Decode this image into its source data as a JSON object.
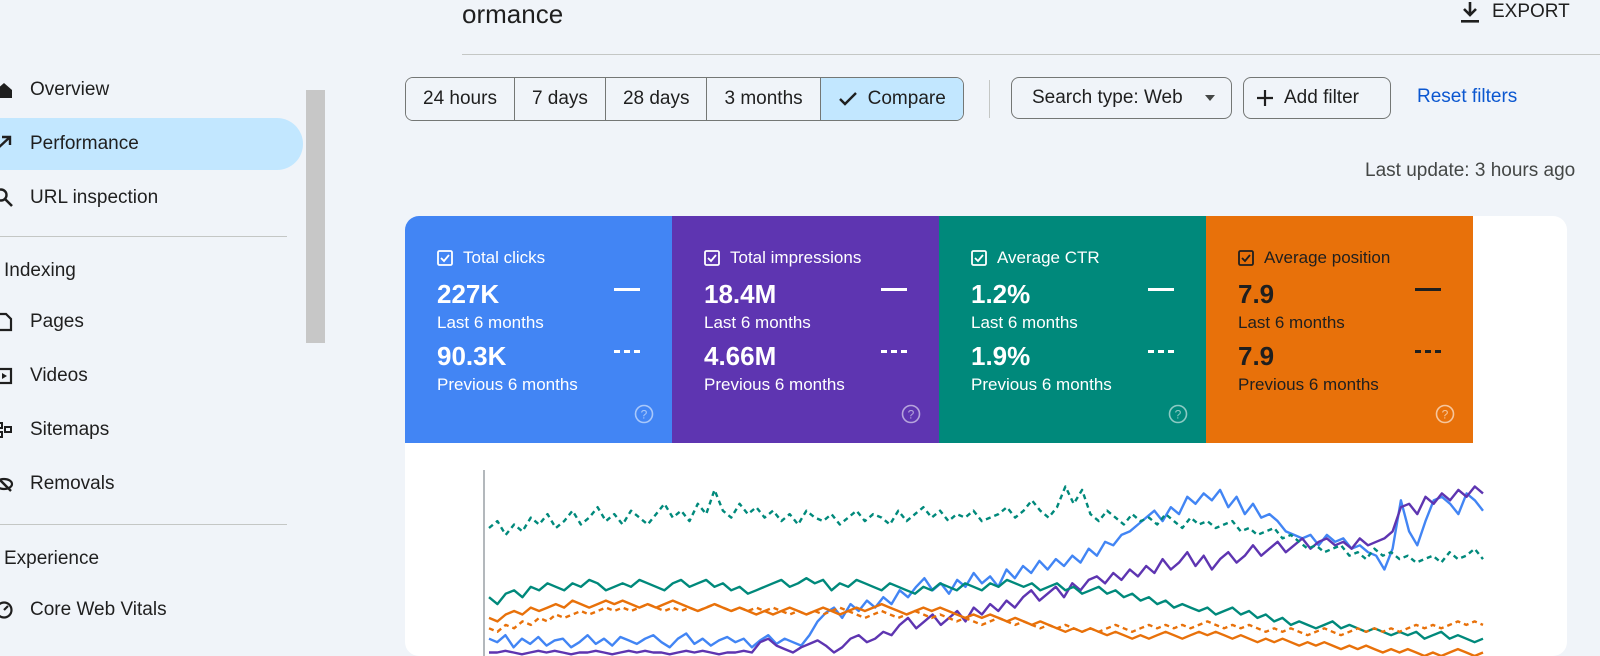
{
  "header": {
    "title": "ormance",
    "export_label": "EXPORT"
  },
  "sidebar": {
    "items": [
      {
        "label": "Overview",
        "icon": "home-icon"
      },
      {
        "label": "Performance",
        "icon": "trending-up-icon",
        "active": true
      },
      {
        "label": "URL inspection",
        "icon": "search-icon"
      }
    ],
    "sections": [
      {
        "title": "Indexing",
        "items": [
          {
            "label": "Pages",
            "icon": "pages-icon"
          },
          {
            "label": "Videos",
            "icon": "videos-icon"
          },
          {
            "label": "Sitemaps",
            "icon": "sitemaps-icon"
          },
          {
            "label": "Removals",
            "icon": "removals-icon"
          }
        ]
      },
      {
        "title": "Experience",
        "items": [
          {
            "label": "Core Web Vitals",
            "icon": "core-web-vitals-icon"
          }
        ]
      }
    ]
  },
  "toolbar": {
    "date_ranges": [
      "24 hours",
      "7 days",
      "28 days",
      "3 months"
    ],
    "compare_label": "Compare",
    "search_type_label": "Search type: Web",
    "add_filter_label": "Add filter",
    "reset_label": "Reset filters",
    "last_update": "Last update: 3 hours ago"
  },
  "metrics": [
    {
      "name": "Total clicks",
      "current": "227K",
      "current_period": "Last 6 months",
      "previous": "90.3K",
      "previous_period": "Previous 6 months",
      "color": "#4285f4"
    },
    {
      "name": "Total impressions",
      "current": "18.4M",
      "current_period": "Last 6 months",
      "previous": "4.66M",
      "previous_period": "Previous 6 months",
      "color": "#5e35b1"
    },
    {
      "name": "Average CTR",
      "current": "1.2%",
      "current_period": "Last 6 months",
      "previous": "1.9%",
      "previous_period": "Previous 6 months",
      "color": "#00897b"
    },
    {
      "name": "Average position",
      "current": "7.9",
      "current_period": "Last 6 months",
      "previous": "7.9",
      "previous_period": "Previous 6 months",
      "color": "#e8710a"
    }
  ],
  "colors": {
    "accent": "#c2e7ff",
    "link": "#0b57d0",
    "background": "#f0f4f9"
  },
  "chart_data": {
    "type": "line",
    "grid": false,
    "series": [
      {
        "name": "Total clicks",
        "line": "solid",
        "color": "#4285f4",
        "values": [
          0.9,
          0.92,
          0.88,
          0.95,
          0.9,
          0.93,
          0.89,
          0.94,
          0.91,
          0.9,
          0.95,
          0.92,
          0.88,
          0.93,
          0.9,
          0.94,
          0.89,
          0.91,
          0.93,
          0.9,
          0.88,
          0.92,
          0.95,
          0.9,
          0.87,
          0.93,
          0.9,
          0.94,
          0.91,
          0.89,
          0.92,
          0.9,
          0.95,
          0.91,
          0.88,
          0.93,
          0.9,
          0.92,
          0.94,
          0.88,
          0.8,
          0.75,
          0.72,
          0.78,
          0.7,
          0.74,
          0.68,
          0.72,
          0.66,
          0.7,
          0.62,
          0.66,
          0.6,
          0.55,
          0.62,
          0.58,
          0.64,
          0.56,
          0.6,
          0.52,
          0.58,
          0.54,
          0.6,
          0.5,
          0.55,
          0.48,
          0.52,
          0.45,
          0.5,
          0.44,
          0.48,
          0.42,
          0.46,
          0.38,
          0.42,
          0.34,
          0.36,
          0.3,
          0.28,
          0.24,
          0.2,
          0.16,
          0.22,
          0.14,
          0.18,
          0.08,
          0.12,
          0.06,
          0.1,
          0.04,
          0.14,
          0.08,
          0.18,
          0.12,
          0.2,
          0.18,
          0.22,
          0.28,
          0.3,
          0.32,
          0.3,
          0.36,
          0.3,
          0.34,
          0.32,
          0.38,
          0.36,
          0.4,
          0.42,
          0.5,
          0.38,
          0.1,
          0.28,
          0.36,
          0.22,
          0.1,
          0.08,
          0.12,
          0.18,
          0.06,
          0.1,
          0.16
        ]
      },
      {
        "name": "Total impressions",
        "line": "solid",
        "color": "#5e35b1",
        "values": [
          0.98,
          0.98,
          0.97,
          0.98,
          0.99,
          0.98,
          0.97,
          0.98,
          0.97,
          0.98,
          0.99,
          0.98,
          0.98,
          0.97,
          0.98,
          0.99,
          0.98,
          0.97,
          0.98,
          0.97,
          0.98,
          0.98,
          0.99,
          0.98,
          0.97,
          0.98,
          0.97,
          0.98,
          0.99,
          0.98,
          0.98,
          0.97,
          0.98,
          0.92,
          0.9,
          0.94,
          0.96,
          0.98,
          0.95,
          0.93,
          0.91,
          0.94,
          0.98,
          0.95,
          0.9,
          0.88,
          0.92,
          0.9,
          0.86,
          0.88,
          0.82,
          0.78,
          0.84,
          0.8,
          0.76,
          0.82,
          0.78,
          0.74,
          0.8,
          0.72,
          0.76,
          0.7,
          0.74,
          0.68,
          0.72,
          0.66,
          0.62,
          0.68,
          0.64,
          0.6,
          0.66,
          0.58,
          0.62,
          0.56,
          0.54,
          0.58,
          0.52,
          0.56,
          0.5,
          0.54,
          0.48,
          0.52,
          0.44,
          0.5,
          0.46,
          0.4,
          0.48,
          0.42,
          0.5,
          0.44,
          0.4,
          0.46,
          0.42,
          0.36,
          0.42,
          0.38,
          0.34,
          0.4,
          0.36,
          0.32,
          0.38,
          0.34,
          0.32,
          0.36,
          0.34,
          0.38,
          0.32,
          0.36,
          0.34,
          0.32,
          0.28,
          0.14,
          0.12,
          0.18,
          0.08,
          0.12,
          0.06,
          0.1,
          0.04,
          0.08,
          0.02,
          0.06
        ]
      },
      {
        "name": "Average CTR",
        "line": "solid",
        "color": "#00897b",
        "values": [
          0.66,
          0.7,
          0.64,
          0.62,
          0.66,
          0.6,
          0.62,
          0.58,
          0.6,
          0.62,
          0.58,
          0.6,
          0.56,
          0.58,
          0.62,
          0.6,
          0.58,
          0.6,
          0.56,
          0.58,
          0.6,
          0.62,
          0.58,
          0.56,
          0.6,
          0.58,
          0.56,
          0.6,
          0.58,
          0.62,
          0.6,
          0.64,
          0.62,
          0.6,
          0.58,
          0.56,
          0.6,
          0.58,
          0.55,
          0.58,
          0.56,
          0.62,
          0.58,
          0.6,
          0.56,
          0.58,
          0.6,
          0.62,
          0.58,
          0.6,
          0.62,
          0.64,
          0.6,
          0.62,
          0.58,
          0.6,
          0.62,
          0.58,
          0.6,
          0.62,
          0.58,
          0.6,
          0.56,
          0.58,
          0.6,
          0.58,
          0.62,
          0.6,
          0.58,
          0.62,
          0.6,
          0.64,
          0.62,
          0.6,
          0.64,
          0.62,
          0.66,
          0.64,
          0.68,
          0.66,
          0.7,
          0.68,
          0.72,
          0.7,
          0.72,
          0.74,
          0.72,
          0.76,
          0.74,
          0.72,
          0.76,
          0.74,
          0.78,
          0.76,
          0.8,
          0.78,
          0.82,
          0.8,
          0.82,
          0.84,
          0.82,
          0.8,
          0.84,
          0.82,
          0.84,
          0.86,
          0.84,
          0.86,
          0.88,
          0.86,
          0.88,
          0.86,
          0.9,
          0.88,
          0.86,
          0.9,
          0.88,
          0.9,
          0.92,
          0.9
        ]
      },
      {
        "name": "Average position",
        "line": "solid",
        "color": "#e8710a",
        "values": [
          0.78,
          0.8,
          0.76,
          0.74,
          0.76,
          0.72,
          0.74,
          0.72,
          0.7,
          0.72,
          0.68,
          0.7,
          0.72,
          0.7,
          0.68,
          0.7,
          0.68,
          0.7,
          0.72,
          0.7,
          0.72,
          0.7,
          0.68,
          0.7,
          0.72,
          0.74,
          0.72,
          0.7,
          0.72,
          0.74,
          0.72,
          0.74,
          0.76,
          0.74,
          0.76,
          0.74,
          0.72,
          0.74,
          0.76,
          0.74,
          0.72,
          0.74,
          0.76,
          0.74,
          0.72,
          0.74,
          0.72,
          0.7,
          0.72,
          0.74,
          0.76,
          0.74,
          0.72,
          0.74,
          0.72,
          0.74,
          0.76,
          0.78,
          0.76,
          0.78,
          0.76,
          0.78,
          0.8,
          0.78,
          0.8,
          0.82,
          0.8,
          0.82,
          0.84,
          0.86,
          0.84,
          0.86,
          0.84,
          0.86,
          0.88,
          0.86,
          0.88,
          0.9,
          0.88,
          0.9,
          0.88,
          0.86,
          0.88,
          0.9,
          0.88,
          0.86,
          0.88,
          0.86,
          0.88,
          0.9,
          0.88,
          0.9,
          0.92,
          0.9,
          0.92,
          0.9,
          0.92,
          0.94,
          0.92,
          0.94,
          0.92,
          0.94,
          0.96,
          0.94,
          0.96,
          0.94,
          0.96,
          0.98,
          0.96,
          0.98,
          0.96,
          0.98,
          1.0,
          0.98,
          1.0,
          0.98,
          0.96,
          0.98,
          1.0,
          0.98
        ]
      },
      {
        "name": "Total clicks (previous)",
        "line": "dashed",
        "color": "#00897b",
        "values": [
          0.26,
          0.22,
          0.3,
          0.24,
          0.28,
          0.2,
          0.24,
          0.18,
          0.26,
          0.22,
          0.16,
          0.24,
          0.2,
          0.14,
          0.22,
          0.18,
          0.24,
          0.16,
          0.2,
          0.24,
          0.18,
          0.12,
          0.2,
          0.16,
          0.22,
          0.12,
          0.18,
          0.04,
          0.16,
          0.2,
          0.12,
          0.18,
          0.14,
          0.2,
          0.16,
          0.22,
          0.18,
          0.24,
          0.16,
          0.2,
          0.22,
          0.18,
          0.24,
          0.2,
          0.16,
          0.22,
          0.18,
          0.2,
          0.24,
          0.16,
          0.22,
          0.18,
          0.14,
          0.2,
          0.16,
          0.22,
          0.18,
          0.2,
          0.16,
          0.22,
          0.2,
          0.18,
          0.14,
          0.2,
          0.16,
          0.1,
          0.16,
          0.2,
          0.14,
          0.02,
          0.12,
          0.04,
          0.18,
          0.22,
          0.16,
          0.2,
          0.24,
          0.18,
          0.22,
          0.2,
          0.24,
          0.18,
          0.22,
          0.26,
          0.2,
          0.24,
          0.22,
          0.26,
          0.24,
          0.22,
          0.28,
          0.26,
          0.3,
          0.28,
          0.26,
          0.32,
          0.3,
          0.34,
          0.38,
          0.36,
          0.4,
          0.38,
          0.36,
          0.42,
          0.4,
          0.44,
          0.38,
          0.42,
          0.4,
          0.44,
          0.42,
          0.46,
          0.44,
          0.42,
          0.46,
          0.4,
          0.44,
          0.42,
          0.38,
          0.44
        ]
      },
      {
        "name": "Average position (previous)",
        "line": "dashed",
        "color": "#e8710a",
        "values": [
          0.84,
          0.86,
          0.82,
          0.84,
          0.8,
          0.82,
          0.78,
          0.8,
          0.76,
          0.78,
          0.76,
          0.74,
          0.76,
          0.74,
          0.72,
          0.74,
          0.72,
          0.74,
          0.72,
          0.7,
          0.72,
          0.74,
          0.72,
          0.74,
          0.72,
          0.74,
          0.72,
          0.7,
          0.72,
          0.74,
          0.72,
          0.74,
          0.72,
          0.74,
          0.72,
          0.74,
          0.76,
          0.74,
          0.76,
          0.74,
          0.76,
          0.74,
          0.72,
          0.74,
          0.76,
          0.78,
          0.76,
          0.74,
          0.76,
          0.78,
          0.76,
          0.74,
          0.76,
          0.78,
          0.76,
          0.78,
          0.8,
          0.78,
          0.8,
          0.82,
          0.8,
          0.78,
          0.8,
          0.82,
          0.8,
          0.82,
          0.84,
          0.82,
          0.84,
          0.82,
          0.84,
          0.86,
          0.84,
          0.86,
          0.84,
          0.82,
          0.84,
          0.86,
          0.84,
          0.82,
          0.84,
          0.82,
          0.84,
          0.82,
          0.84,
          0.82,
          0.8,
          0.82,
          0.84,
          0.82,
          0.84,
          0.82,
          0.84,
          0.86,
          0.84,
          0.86,
          0.84,
          0.86,
          0.88,
          0.86,
          0.84,
          0.86,
          0.88,
          0.86,
          0.84,
          0.86,
          0.84,
          0.86,
          0.84,
          0.86,
          0.84,
          0.82,
          0.84,
          0.82,
          0.84,
          0.82,
          0.8,
          0.82,
          0.8,
          0.82
        ]
      }
    ]
  }
}
